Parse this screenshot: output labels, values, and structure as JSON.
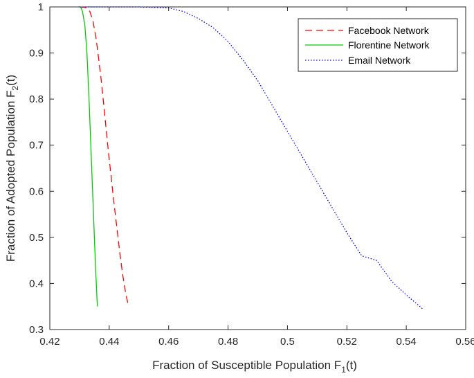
{
  "chart_data": {
    "type": "line",
    "title": "",
    "xlabel": "Fraction of Susceptible Population F",
    "xlabel_subscript": "1",
    "xlabel_suffix": "(t)",
    "ylabel": "Fraction of Adopted Population F",
    "ylabel_subscript": "2",
    "ylabel_suffix": "(t)",
    "xlim": [
      0.42,
      0.56
    ],
    "ylim": [
      0.3,
      1.0
    ],
    "xticks": [
      0.42,
      0.44,
      0.46,
      0.48,
      0.5,
      0.52,
      0.54,
      0.56
    ],
    "xtick_labels": [
      "0.42",
      "0.44",
      "0.46",
      "0.48",
      "0.5",
      "0.52",
      "0.54",
      "0.56"
    ],
    "yticks": [
      0.3,
      0.4,
      0.5,
      0.6,
      0.7,
      0.8,
      0.9,
      1.0
    ],
    "ytick_labels": [
      "0.3",
      "0.4",
      "0.5",
      "0.6",
      "0.7",
      "0.8",
      "0.9",
      "1"
    ],
    "grid": false,
    "legend_position": "top-right",
    "series": [
      {
        "name": "Facebook Network",
        "color": "#ff0000",
        "style": "dashed",
        "points": [
          [
            0.43,
            1.0
          ],
          [
            0.432,
            0.999
          ],
          [
            0.4335,
            0.99
          ],
          [
            0.4345,
            0.97
          ],
          [
            0.4355,
            0.935
          ],
          [
            0.4365,
            0.885
          ],
          [
            0.4375,
            0.83
          ],
          [
            0.4385,
            0.765
          ],
          [
            0.4395,
            0.7
          ],
          [
            0.4405,
            0.64
          ],
          [
            0.4415,
            0.58
          ],
          [
            0.4425,
            0.525
          ],
          [
            0.4435,
            0.47
          ],
          [
            0.4445,
            0.42
          ],
          [
            0.4455,
            0.38
          ],
          [
            0.4465,
            0.35
          ]
        ]
      },
      {
        "name": "Florentine Network",
        "color": "#00cc00",
        "style": "solid",
        "points": [
          [
            0.43,
            1.0
          ],
          [
            0.4305,
            0.998
          ],
          [
            0.431,
            0.99
          ],
          [
            0.4318,
            0.96
          ],
          [
            0.4325,
            0.9
          ],
          [
            0.4332,
            0.8
          ],
          [
            0.4338,
            0.7
          ],
          [
            0.4344,
            0.6
          ],
          [
            0.435,
            0.5
          ],
          [
            0.4355,
            0.42
          ],
          [
            0.436,
            0.35
          ]
        ]
      },
      {
        "name": "Email Network",
        "color": "#0000ff",
        "style": "dotted",
        "points": [
          [
            0.43,
            1.0
          ],
          [
            0.44,
            1.0
          ],
          [
            0.45,
            1.0
          ],
          [
            0.46,
            0.998
          ],
          [
            0.465,
            0.99
          ],
          [
            0.47,
            0.975
          ],
          [
            0.475,
            0.955
          ],
          [
            0.48,
            0.925
          ],
          [
            0.485,
            0.885
          ],
          [
            0.49,
            0.84
          ],
          [
            0.495,
            0.785
          ],
          [
            0.5,
            0.73
          ],
          [
            0.505,
            0.675
          ],
          [
            0.51,
            0.62
          ],
          [
            0.515,
            0.565
          ],
          [
            0.52,
            0.51
          ],
          [
            0.525,
            0.46
          ],
          [
            0.53,
            0.45
          ],
          [
            0.535,
            0.405
          ],
          [
            0.54,
            0.375
          ],
          [
            0.5455,
            0.345
          ]
        ]
      }
    ]
  }
}
